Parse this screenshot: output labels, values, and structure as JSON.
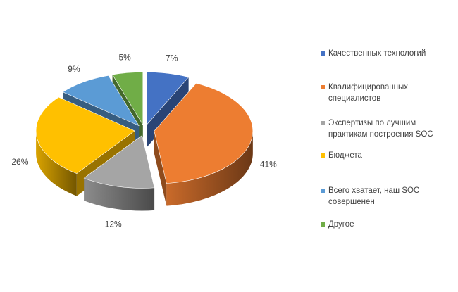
{
  "chart_data": {
    "type": "pie",
    "title": "",
    "categories": [
      "Качественных технологий",
      "Квалифицированных специалистов",
      "Экспертизы по лучшим практикам построения SOC",
      "Бюджета",
      "Всего хватает, наш SOC совершенен",
      "Другое"
    ],
    "values": [
      7,
      41,
      12,
      26,
      9,
      5
    ],
    "value_labels": [
      "7%",
      "41%",
      "12%",
      "26%",
      "9%",
      "5%"
    ],
    "colors": [
      "#4472C4",
      "#ED7D31",
      "#A5A5A5",
      "#FFC000",
      "#5B9BD5",
      "#70AD47"
    ],
    "legend_position": "right",
    "style": "3d-exploded"
  }
}
